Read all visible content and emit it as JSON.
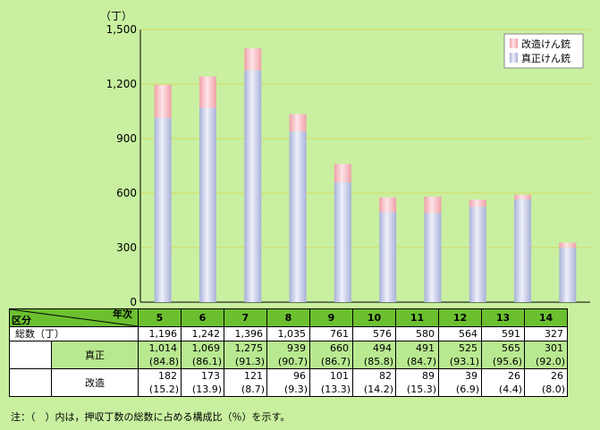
{
  "chart_data": {
    "type": "bar",
    "stacked": true,
    "ylabel": "（丁）",
    "ylim": [
      0,
      1500
    ],
    "yticks": [
      0,
      300,
      600,
      900,
      1200,
      1500
    ],
    "ytick_labels": [
      "0",
      "300",
      "600",
      "900",
      "1,200",
      "1,500"
    ],
    "categories": [
      "5",
      "6",
      "7",
      "8",
      "9",
      "10",
      "11",
      "12",
      "13",
      "14"
    ],
    "series": [
      {
        "name": "真正けん銃",
        "values": [
          1014,
          1069,
          1275,
          939,
          660,
          494,
          491,
          525,
          565,
          301
        ],
        "color": "#c8cce8"
      },
      {
        "name": "改造けん銃",
        "values": [
          182,
          173,
          121,
          96,
          101,
          82,
          89,
          39,
          26,
          26
        ],
        "color": "#f8c0c8"
      }
    ],
    "grid": true,
    "legend": "top-right"
  },
  "table": {
    "corner_top": "年次",
    "corner_bottom": "区分",
    "total_label": "総数（丁）",
    "genuine_label": "真正",
    "modified_label": "改造",
    "totals": [
      "1,196",
      "1,242",
      "1,396",
      "1,035",
      "761",
      "576",
      "580",
      "564",
      "591",
      "327"
    ],
    "genuine": [
      "1,014",
      "1,069",
      "1,275",
      "939",
      "660",
      "494",
      "491",
      "525",
      "565",
      "301"
    ],
    "genuine_pct": [
      "(84.8)",
      "(86.1)",
      "(91.3)",
      "(90.7)",
      "(86.7)",
      "(85.8)",
      "(84.7)",
      "(93.1)",
      "(95.6)",
      "(92.0)"
    ],
    "modified": [
      "182",
      "173",
      "121",
      "96",
      "101",
      "82",
      "89",
      "39",
      "26",
      "26"
    ],
    "modified_pct": [
      "(15.2)",
      "(13.9)",
      "(8.7)",
      "(9.3)",
      "(13.3)",
      "(14.2)",
      "(15.3)",
      "(6.9)",
      "(4.4)",
      "(8.0)"
    ]
  },
  "note": "注：（　）内は，押収丁数の総数に占める構成比（％）を示す。"
}
